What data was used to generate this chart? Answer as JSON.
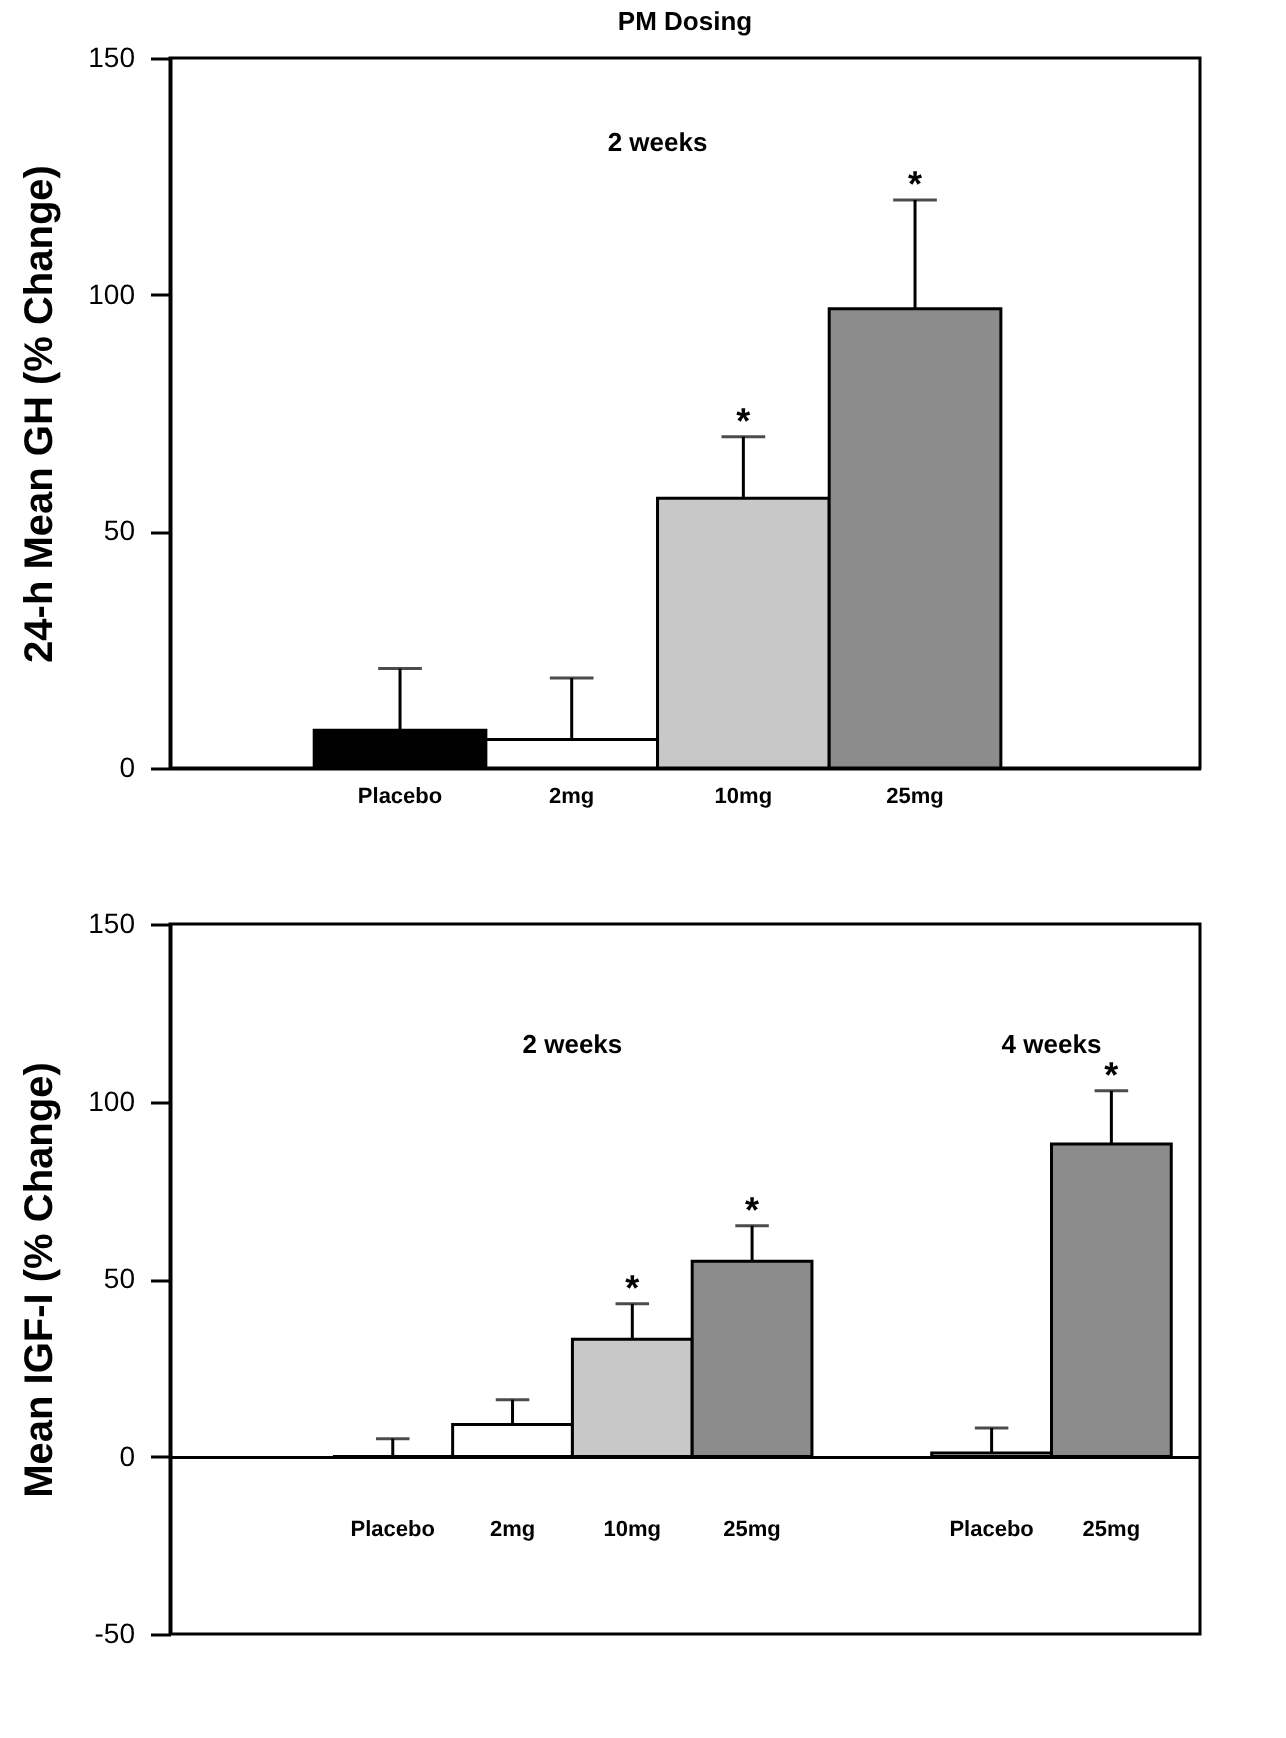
{
  "chart_data": [
    {
      "type": "bar",
      "title": "PM Dosing",
      "ylabel": "24-h Mean GH (% Change)",
      "categories": [
        "Placebo",
        "2mg",
        "10mg",
        "25mg"
      ],
      "values": [
        8,
        6,
        57,
        97
      ],
      "errors": [
        [
          8,
          21
        ],
        [
          6,
          19
        ],
        [
          57,
          70
        ],
        [
          97,
          120
        ]
      ],
      "colors": [
        "#000000",
        "#ffffff",
        "#c8c8c8",
        "#8c8c8c"
      ],
      "ylim": [
        0,
        150
      ],
      "yticks": [
        0,
        50,
        100,
        150
      ],
      "value_labels": [
        null,
        null,
        "*",
        "*"
      ],
      "annotations": [
        "2 weeks"
      ]
    },
    {
      "type": "bar",
      "ylabel": "Mean IGF-I (% Change)",
      "categories": [
        "Placebo",
        "2mg",
        "10mg",
        "25mg",
        null,
        "Placebo",
        "25mg"
      ],
      "values": [
        0,
        9,
        33,
        55,
        null,
        1,
        88
      ],
      "errors": [
        [
          0,
          5
        ],
        [
          9,
          16
        ],
        [
          33,
          43
        ],
        [
          55,
          65
        ],
        null,
        [
          1,
          8
        ],
        [
          88,
          103
        ]
      ],
      "colors": [
        "#000000",
        "#ffffff",
        "#c8c8c8",
        "#8c8c8c",
        null,
        "#ffffff",
        "#8c8c8c"
      ],
      "ylim": [
        -50,
        150
      ],
      "yticks": [
        -50,
        0,
        50,
        100,
        150
      ],
      "value_labels": [
        null,
        null,
        "*",
        "*",
        null,
        null,
        "*"
      ],
      "annotations": [
        "2 weeks",
        "4 weeks"
      ]
    }
  ]
}
